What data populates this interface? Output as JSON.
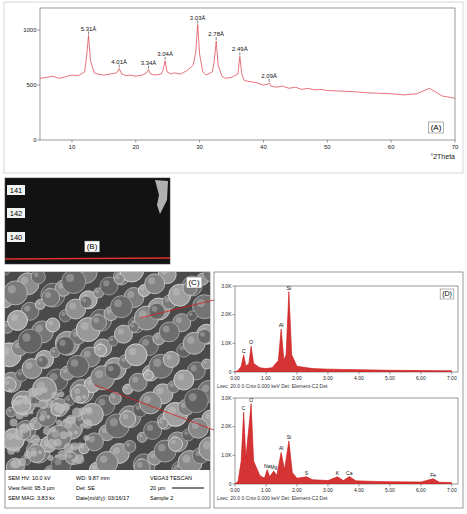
{
  "chart_data": [
    {
      "type": "line",
      "color": "#e0505a",
      "x_label": "°2Theta",
      "x": [
        5,
        6,
        7,
        8,
        9,
        10,
        11,
        12,
        12.3,
        12.6,
        12.9,
        13.5,
        14,
        15,
        16,
        17,
        17.4,
        17.8,
        18.5,
        19,
        20,
        21,
        21.7,
        22,
        22.3,
        23,
        24,
        24.3,
        24.6,
        24.9,
        25.5,
        26,
        27,
        28,
        29,
        29.4,
        29.7,
        30,
        30.5,
        31,
        32,
        32.3,
        32.6,
        32.9,
        33.5,
        34,
        35,
        36,
        36.3,
        36.6,
        37,
        38,
        39,
        40,
        40.6,
        40.9,
        41.2,
        42,
        43,
        44,
        45,
        46,
        47,
        48,
        49,
        50,
        52,
        54,
        56,
        58,
        60,
        62,
        64,
        66,
        68,
        70
      ],
      "values": [
        560,
        570,
        580,
        560,
        575,
        590,
        585,
        620,
        760,
        950,
        720,
        610,
        600,
        590,
        600,
        610,
        650,
        600,
        585,
        590,
        580,
        590,
        610,
        640,
        600,
        590,
        600,
        640,
        720,
        620,
        600,
        610,
        600,
        630,
        680,
        800,
        1050,
        780,
        620,
        590,
        620,
        720,
        900,
        680,
        580,
        560,
        570,
        600,
        760,
        600,
        540,
        530,
        520,
        500,
        505,
        520,
        490,
        480,
        490,
        470,
        480,
        460,
        470,
        455,
        460,
        450,
        445,
        440,
        430,
        425,
        420,
        410,
        420,
        470,
        400,
        380
      ],
      "xlim": [
        5,
        70
      ],
      "xticks": [
        10,
        20,
        30,
        40,
        50,
        60,
        70
      ],
      "ylim": [
        0,
        1200
      ],
      "yticks": [
        0,
        500,
        1000
      ],
      "grid": false,
      "annotations": [
        {
          "text": "5.31Å",
          "x": 12.6
        },
        {
          "text": "4.01Å",
          "x": 17.4
        },
        {
          "text": "3.34Å",
          "x": 22
        },
        {
          "text": "3.04Å",
          "x": 24.6
        },
        {
          "text": "3.03Å",
          "x": 29.7
        },
        {
          "text": "2.78Å",
          "x": 32.6
        },
        {
          "text": "2.49Å",
          "x": 36.3
        },
        {
          "text": "2.09Å",
          "x": 40.9
        }
      ]
    },
    {
      "type": "area",
      "color": "#cc1111",
      "x": [
        0,
        0.1,
        0.2,
        0.28,
        0.35,
        0.45,
        0.52,
        0.6,
        0.8,
        1.0,
        1.2,
        1.4,
        1.49,
        1.58,
        1.65,
        1.74,
        1.83,
        2.0,
        2.5,
        3,
        3.5,
        4,
        5,
        6,
        7
      ],
      "values": [
        0,
        50,
        200,
        600,
        200,
        300,
        900,
        300,
        150,
        120,
        150,
        400,
        1500,
        400,
        600,
        2800,
        600,
        200,
        120,
        100,
        90,
        80,
        60,
        50,
        40
      ],
      "xlim": [
        0,
        7.2
      ],
      "xticks": [
        {
          "value": 0,
          "label": "0.00"
        },
        {
          "value": 1,
          "label": "1.00"
        },
        {
          "value": 2,
          "label": "2.00"
        },
        {
          "value": 3,
          "label": "3.00"
        },
        {
          "value": 4,
          "label": "4.00"
        },
        {
          "value": 5,
          "label": "5.00"
        },
        {
          "value": 6,
          "label": "6.00"
        },
        {
          "value": 7,
          "label": "7.00"
        }
      ],
      "ylim": [
        0,
        3000
      ],
      "yticks": [
        0,
        {
          "value": 1000,
          "label": "1.0K"
        },
        {
          "value": 2000,
          "label": "2.0K"
        },
        {
          "value": 3000,
          "label": "3.0K"
        }
      ],
      "grid": false,
      "annotations": [
        {
          "text": "C",
          "x": 0.28
        },
        {
          "text": "O",
          "x": 0.52
        },
        {
          "text": "Al",
          "x": 1.49
        },
        {
          "text": "Si",
          "x": 1.74
        }
      ],
      "footer": "Lsec: 20.0   0 Cnts   0.000 keV   Det: Element-C2 Det"
    },
    {
      "type": "area",
      "color": "#cc1111",
      "x": [
        0,
        0.1,
        0.2,
        0.28,
        0.35,
        0.45,
        0.52,
        0.6,
        0.8,
        0.95,
        1.04,
        1.12,
        1.25,
        1.35,
        1.49,
        1.6,
        1.74,
        1.85,
        2.0,
        2.31,
        2.5,
        3.0,
        3.31,
        3.5,
        3.69,
        3.9,
        4.5,
        5,
        6.0,
        6.4,
        6.6,
        7
      ],
      "values": [
        0,
        100,
        800,
        2500,
        900,
        2000,
        2800,
        800,
        300,
        200,
        500,
        250,
        450,
        300,
        1100,
        500,
        1500,
        400,
        200,
        250,
        150,
        120,
        250,
        120,
        260,
        110,
        90,
        80,
        70,
        180,
        60,
        50
      ],
      "xlim": [
        0,
        7.2
      ],
      "xticks": [
        {
          "value": 0,
          "label": "0.00"
        },
        {
          "value": 1,
          "label": "1.00"
        },
        {
          "value": 2,
          "label": "2.00"
        },
        {
          "value": 3,
          "label": "3.00"
        },
        {
          "value": 4,
          "label": "4.00"
        },
        {
          "value": 5,
          "label": "5.00"
        },
        {
          "value": 6,
          "label": "6.00"
        },
        {
          "value": 7,
          "label": "7.00"
        }
      ],
      "ylim": [
        0,
        3000
      ],
      "yticks": [
        0,
        {
          "value": 1000,
          "label": "1.0K"
        },
        {
          "value": 2000,
          "label": "2.0K"
        },
        {
          "value": 3000,
          "label": "3.0K"
        }
      ],
      "grid": false,
      "annotations": [
        {
          "text": "C",
          "x": 0.28
        },
        {
          "text": "O",
          "x": 0.52
        },
        {
          "text": "Na",
          "x": 1.04
        },
        {
          "text": "Mg",
          "x": 1.25
        },
        {
          "text": "Al",
          "x": 1.49
        },
        {
          "text": "Si",
          "x": 1.74
        },
        {
          "text": "S",
          "x": 2.31
        },
        {
          "text": "K",
          "x": 3.31
        },
        {
          "text": "Ca",
          "x": 3.69
        },
        {
          "text": "Fe",
          "x": 6.4
        }
      ],
      "footer": "Lsec: 20.0   0 Cnts   0.000 keV   Det: Element-C2 Det"
    }
  ],
  "panels": {
    "A": {
      "label": "(A)"
    },
    "B": {
      "label": "(B)",
      "scale_labels": [
        "141",
        "142",
        "140"
      ]
    },
    "C": {
      "label": "(C)",
      "info": [
        [
          "SEM HV: 10.0 kV",
          "WD: 9.87 mm",
          "VEGA3 TESCAN"
        ],
        [
          "View field: 95.3 µm",
          "Det: SE",
          "20 µm"
        ],
        [
          "SEM MAG: 3.83 kx",
          "Date(m/d/y): 03/16/17",
          "Sample 2"
        ]
      ]
    },
    "D": {
      "label": "(D)"
    }
  }
}
